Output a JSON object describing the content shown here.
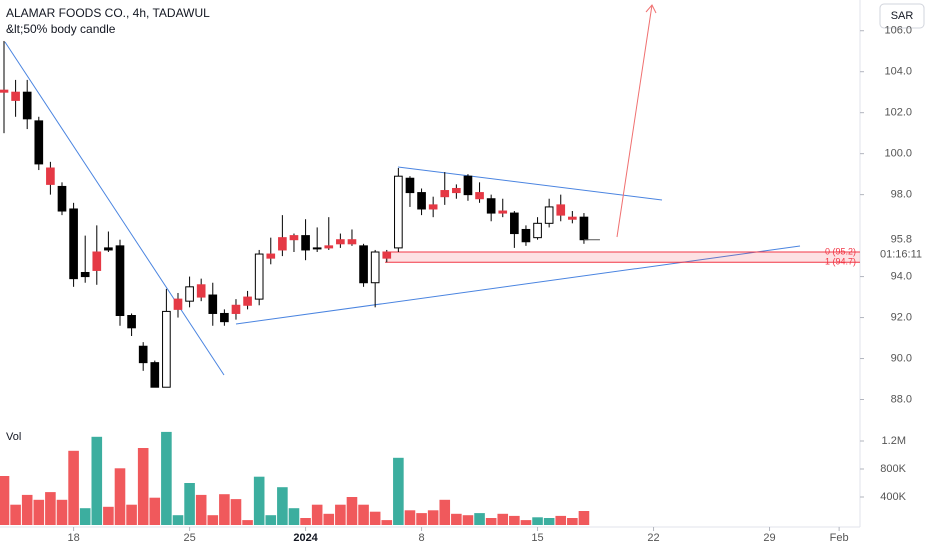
{
  "chart_data": [
    {
      "type": "candlestick",
      "title": "ALAMAR FOODS CO., 4h, TADAWUL",
      "subtitle": "&lt;50% body candle",
      "currency": "SAR",
      "open": [
        103.0,
        103.0,
        103.0,
        101.6,
        99.3,
        98.4,
        97.3,
        94.2,
        94.3,
        95.4,
        95.5,
        92.1,
        90.6,
        89.8,
        88.6,
        92.4,
        92.8,
        93.0,
        93.1,
        92.2,
        92.2,
        92.6,
        92.9,
        94.9,
        95.3,
        95.8,
        96.0,
        95.4,
        95.4,
        95.6,
        95.6,
        95.5,
        93.7,
        94.9,
        95.4,
        98.8,
        98.1,
        97.3,
        97.9,
        98.1,
        98.9,
        98.1,
        97.8,
        97.1,
        97.1,
        96.3,
        95.9,
        96.6,
        97.0,
        96.9,
        96.9
      ],
      "high": [
        105.5,
        103.6,
        103.6,
        101.8,
        99.6,
        98.6,
        97.6,
        96.0,
        96.5,
        96.2,
        95.8,
        92.2,
        90.8,
        89.9,
        93.4,
        93.2,
        94.0,
        93.9,
        93.7,
        92.4,
        92.9,
        93.3,
        95.3,
        95.9,
        97.0,
        96.1,
        96.8,
        96.4,
        96.9,
        96.1,
        96.3,
        95.6,
        95.3,
        95.3,
        99.3,
        98.9,
        98.3,
        97.9,
        99.1,
        98.5,
        99.0,
        98.6,
        98.0,
        97.8,
        97.2,
        96.5,
        96.9,
        97.8,
        98.0,
        97.2,
        97.1
      ],
      "low": [
        101.0,
        101.8,
        101.2,
        99.2,
        98.0,
        97.0,
        93.5,
        93.7,
        93.6,
        95.2,
        91.6,
        91.1,
        89.4,
        88.6,
        88.6,
        92.0,
        92.5,
        92.8,
        91.6,
        91.6,
        91.9,
        92.4,
        92.6,
        94.6,
        95.0,
        95.2,
        94.8,
        95.2,
        95.3,
        95.4,
        95.5,
        93.5,
        92.5,
        94.7,
        95.2,
        97.4,
        97.0,
        96.9,
        97.5,
        97.8,
        97.7,
        97.6,
        96.7,
        96.9,
        95.4,
        95.5,
        95.8,
        96.4,
        96.7,
        96.6,
        95.6
      ],
      "close": [
        103.1,
        102.6,
        101.7,
        99.5,
        98.5,
        97.2,
        93.9,
        94.0,
        95.2,
        95.3,
        92.1,
        91.5,
        89.8,
        88.6,
        92.3,
        92.9,
        93.5,
        93.6,
        92.2,
        91.8,
        92.6,
        93.0,
        95.1,
        95.1,
        95.9,
        96.0,
        95.3,
        95.4,
        95.5,
        95.8,
        95.8,
        93.7,
        95.2,
        95.2,
        98.9,
        98.1,
        97.3,
        97.5,
        98.2,
        98.3,
        98.0,
        97.8,
        97.1,
        97.2,
        96.1,
        95.7,
        96.6,
        97.4,
        97.5,
        96.8,
        95.8
      ],
      "candle_colors": [
        "#e53945",
        "#e53945",
        "#000000",
        "#000000",
        "#e53945",
        "#000000",
        "#000000",
        "#000000",
        "#e53945",
        "#000000",
        "#000000",
        "#000000",
        "#000000",
        "#000000",
        "#ffffff",
        "#e53945",
        "#ffffff",
        "#e53945",
        "#000000",
        "#000000",
        "#e53945",
        "#e53945",
        "#ffffff",
        "#e53945",
        "#e53945",
        "#e53945",
        "#000000",
        "#000000",
        "#e53945",
        "#e53945",
        "#e53945",
        "#000000",
        "#ffffff",
        "#e53945",
        "#ffffff",
        "#000000",
        "#000000",
        "#e53945",
        "#e53945",
        "#e53945",
        "#000000",
        "#e53945",
        "#000000",
        "#e53945",
        "#000000",
        "#000000",
        "#ffffff",
        "#ffffff",
        "#e53945",
        "#e53945",
        "#000000"
      ],
      "ylim": [
        87,
        107.5
      ],
      "yticks": [
        {
          "value": 88,
          "label": "88.0"
        },
        {
          "value": 90,
          "label": "90.0"
        },
        {
          "value": 92,
          "label": "92.0"
        },
        {
          "value": 94,
          "label": "94.0"
        },
        {
          "value": 98,
          "label": "98.0"
        },
        {
          "value": 100,
          "label": "100.0"
        },
        {
          "value": 102,
          "label": "102.0"
        },
        {
          "value": 104,
          "label": "104.0"
        },
        {
          "value": 106,
          "label": "106.0"
        }
      ],
      "last_price": 95.8,
      "countdown": "01:16:11",
      "levels": [
        {
          "value": 95.2,
          "label": "0 (95.2)"
        },
        {
          "value": 94.7,
          "label": "1 (94.7)"
        }
      ]
    },
    {
      "type": "bar",
      "title": "Vol",
      "values": [
        700000,
        290000,
        430000,
        360000,
        470000,
        360000,
        1060000,
        240000,
        1260000,
        260000,
        810000,
        290000,
        1100000,
        390000,
        1330000,
        140000,
        600000,
        430000,
        140000,
        440000,
        370000,
        70000,
        690000,
        140000,
        540000,
        240000,
        100000,
        290000,
        160000,
        290000,
        400000,
        290000,
        190000,
        70000,
        960000,
        210000,
        170000,
        210000,
        360000,
        160000,
        140000,
        170000,
        100000,
        160000,
        130000,
        70000,
        110000,
        100000,
        130000,
        100000,
        200000
      ],
      "colors": [
        "#f0595c",
        "#f0595c",
        "#f0595c",
        "#f0595c",
        "#f0595c",
        "#f0595c",
        "#f0595c",
        "#3cae9f",
        "#3cae9f",
        "#f0595c",
        "#f0595c",
        "#f0595c",
        "#f0595c",
        "#f0595c",
        "#3cae9f",
        "#3cae9f",
        "#3cae9f",
        "#f0595c",
        "#f0595c",
        "#f0595c",
        "#f0595c",
        "#f0595c",
        "#3cae9f",
        "#3cae9f",
        "#3cae9f",
        "#3cae9f",
        "#f0595c",
        "#f0595c",
        "#f0595c",
        "#f0595c",
        "#f0595c",
        "#f0595c",
        "#f0595c",
        "#f0595c",
        "#3cae9f",
        "#f0595c",
        "#f0595c",
        "#f0595c",
        "#f0595c",
        "#f0595c",
        "#f0595c",
        "#3cae9f",
        "#f0595c",
        "#f0595c",
        "#f0595c",
        "#f0595c",
        "#3cae9f",
        "#3cae9f",
        "#f0595c",
        "#f0595c",
        "#f0595c"
      ],
      "ylim": [
        0,
        1400000
      ],
      "yticks": [
        {
          "value": 400000,
          "label": "400K"
        },
        {
          "value": 800000,
          "label": "800K"
        },
        {
          "value": 1200000,
          "label": "1.2M"
        }
      ],
      "xlim": [
        -0.345,
        73.8
      ],
      "xticks": [
        {
          "value": 6,
          "label": "18"
        },
        {
          "value": 16,
          "label": "25"
        },
        {
          "value": 26,
          "label": "2024"
        },
        {
          "value": 36,
          "label": "8"
        },
        {
          "value": 46,
          "label": "15"
        },
        {
          "value": 56,
          "label": "22"
        },
        {
          "value": 66,
          "label": "29"
        },
        {
          "value": 72,
          "label": "Feb"
        }
      ]
    }
  ]
}
